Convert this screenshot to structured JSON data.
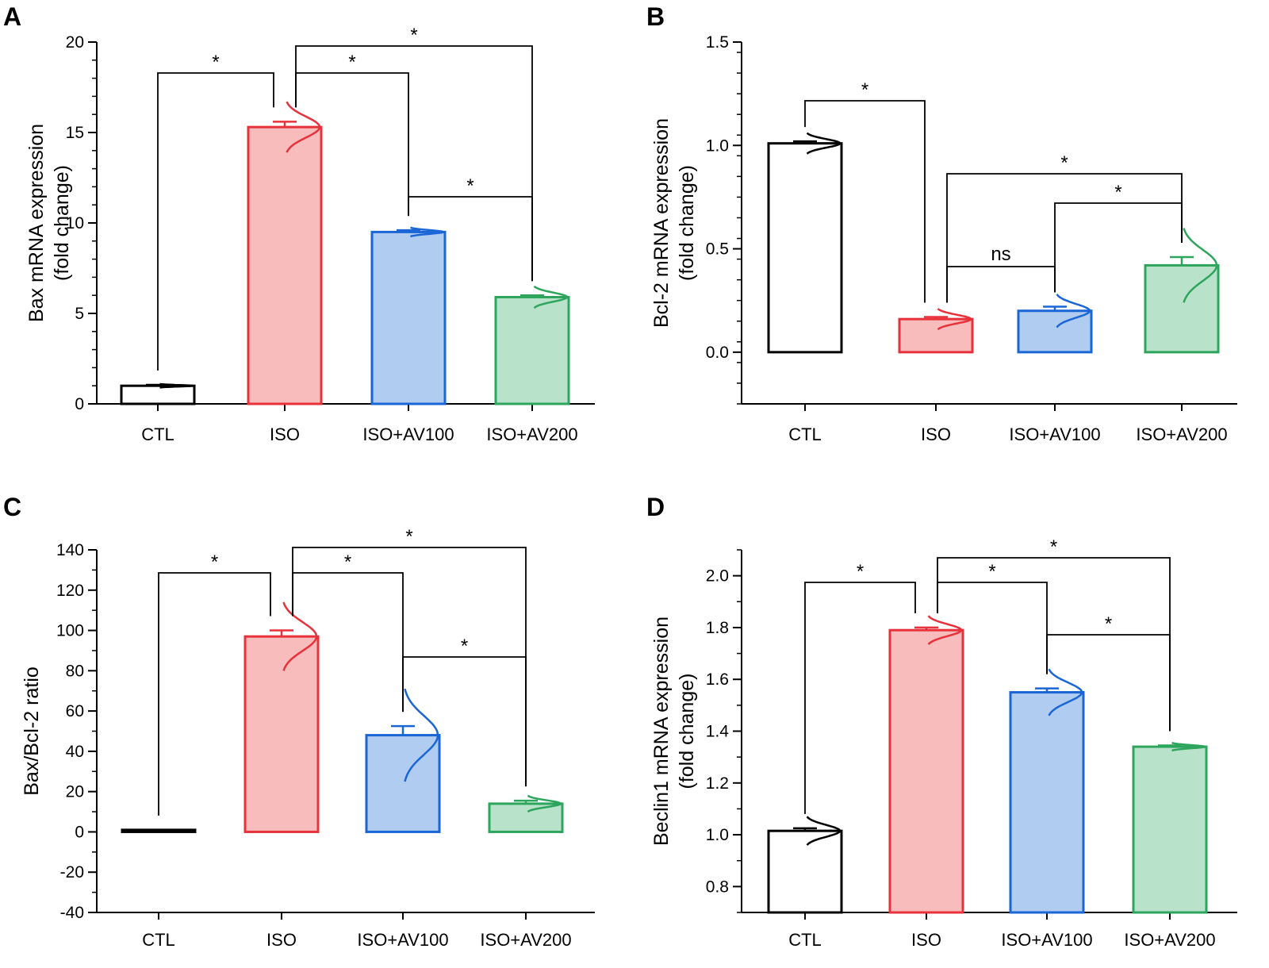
{
  "chart_data": [
    {
      "type": "bar",
      "panel": "A",
      "ylabel_line1": "Bax mRNA expression",
      "ylabel_line2": "(fold change)",
      "ylim": [
        0,
        20
      ],
      "yticks": [
        0,
        5,
        10,
        15,
        20
      ],
      "ytick_labels": [
        "0",
        "5",
        "10",
        "15",
        "20"
      ],
      "categories": [
        "CTL",
        "ISO",
        "ISO+AV100",
        "ISO+AV200"
      ],
      "values": [
        1.0,
        15.3,
        9.5,
        5.9
      ],
      "errors": [
        0.05,
        0.3,
        0.1,
        0.1
      ],
      "dist_spread": [
        0.1,
        1.4,
        0.25,
        0.6
      ],
      "significance": [
        {
          "from": 0,
          "to": 1,
          "label": "*"
        },
        {
          "from": 1,
          "to": 2,
          "label": "*"
        },
        {
          "from": 1,
          "to": 3,
          "label": "*"
        },
        {
          "from": 2,
          "to": 3,
          "label": "*"
        }
      ]
    },
    {
      "type": "bar",
      "panel": "B",
      "ylabel_line1": "Bcl-2 mRNA expression",
      "ylabel_line2": "(fold change)",
      "ylim": [
        -0.25,
        1.5
      ],
      "yticks": [
        0,
        0.5,
        1.0,
        1.5
      ],
      "ytick_labels": [
        "0.0",
        "0.5",
        "1.0",
        "1.5"
      ],
      "categories": [
        "CTL",
        "ISO",
        "ISO+AV100",
        "ISO+AV200"
      ],
      "values": [
        1.01,
        0.16,
        0.2,
        0.42
      ],
      "errors": [
        0.01,
        0.01,
        0.02,
        0.04
      ],
      "dist_spread": [
        0.05,
        0.05,
        0.08,
        0.18
      ],
      "significance": [
        {
          "from": 0,
          "to": 1,
          "label": "*"
        },
        {
          "from": 1,
          "to": 3,
          "label": "*"
        },
        {
          "from": 2,
          "to": 3,
          "label": "*"
        },
        {
          "from": 1,
          "to": 2,
          "label": "ns"
        }
      ]
    },
    {
      "type": "bar",
      "panel": "C",
      "ylabel_line1": "Bax/Bcl-2 ratio",
      "ylabel_line2": "",
      "ylim": [
        -40,
        140
      ],
      "yticks": [
        -40,
        -20,
        0,
        20,
        40,
        60,
        80,
        100,
        120,
        140
      ],
      "ytick_labels": [
        "-40",
        "-20",
        "0",
        "20",
        "40",
        "60",
        "80",
        "100",
        "120",
        "140"
      ],
      "categories": [
        "CTL",
        "ISO",
        "ISO+AV100",
        "ISO+AV200"
      ],
      "values": [
        1.0,
        97,
        48,
        14
      ],
      "errors": [
        0,
        3,
        4.5,
        1.5
      ],
      "dist_spread": [
        0,
        17,
        23,
        4
      ],
      "significance": [
        {
          "from": 0,
          "to": 1,
          "label": "*"
        },
        {
          "from": 1,
          "to": 2,
          "label": "*"
        },
        {
          "from": 1,
          "to": 3,
          "label": "*"
        },
        {
          "from": 2,
          "to": 3,
          "label": "*"
        }
      ]
    },
    {
      "type": "bar",
      "panel": "D",
      "ylabel_line1": "Beclin1 mRNA expression",
      "ylabel_line2": "(fold change)",
      "ylim": [
        0.7,
        2.1
      ],
      "yticks": [
        0.8,
        1.0,
        1.2,
        1.4,
        1.6,
        1.8,
        2.0
      ],
      "ytick_labels": [
        "0.8",
        "1.0",
        "1.2",
        "1.4",
        "1.6",
        "1.8",
        "2.0"
      ],
      "categories": [
        "CTL",
        "ISO",
        "ISO+AV100",
        "ISO+AV200"
      ],
      "values": [
        1.015,
        1.79,
        1.55,
        1.34
      ],
      "errors": [
        0.01,
        0.01,
        0.015,
        0.005
      ],
      "dist_spread": [
        0.055,
        0.055,
        0.09,
        0.015
      ],
      "significance": [
        {
          "from": 0,
          "to": 1,
          "label": "*"
        },
        {
          "from": 1,
          "to": 2,
          "label": "*"
        },
        {
          "from": 1,
          "to": 3,
          "label": "*"
        },
        {
          "from": 2,
          "to": 3,
          "label": "*"
        }
      ]
    }
  ],
  "colors": {
    "CTL": {
      "stroke": "#000000",
      "fill": "#ffffff"
    },
    "ISO": {
      "stroke": "#e8323b",
      "fill": "#f9bcbd"
    },
    "ISO+AV100": {
      "stroke": "#1a66d6",
      "fill": "#b0ccf0"
    },
    "ISO+AV200": {
      "stroke": "#2ea55c",
      "fill": "#b9e2cb"
    }
  }
}
